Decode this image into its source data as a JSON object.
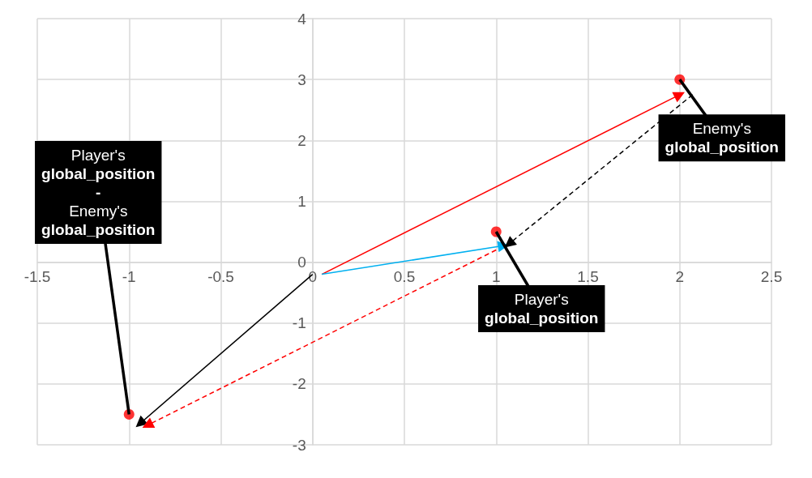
{
  "chart_data": {
    "type": "scatter",
    "xlim": [
      -1.5,
      2.5
    ],
    "xticks": [
      -1.5,
      -1,
      -0.5,
      0,
      0.5,
      1,
      1.5,
      2,
      2.5
    ],
    "ylim": [
      -3,
      4
    ],
    "yticks": [
      -3,
      -2,
      -1,
      0,
      1,
      2,
      3,
      4
    ],
    "grid": true,
    "series": [
      {
        "color": "#ff0000",
        "marker": "circle",
        "x": [
          2,
          1,
          -1
        ],
        "values": [
          3,
          0.5,
          -2.5
        ]
      },
      {
        "type": "line",
        "color": "#ff0000",
        "line_style": "solid",
        "marker": "triangle",
        "x": [
          0.05,
          2.0
        ],
        "values": [
          -0.2,
          2.75
        ]
      },
      {
        "type": "line",
        "color": "#00b0f0",
        "line_style": "solid",
        "marker": "triangle",
        "x": [
          0.05,
          1.04
        ],
        "values": [
          -0.2,
          0.27
        ]
      },
      {
        "type": "line",
        "color": "#000000",
        "line_style": "solid",
        "marker": "triangle",
        "x": [
          0.0,
          -0.94
        ],
        "values": [
          -0.2,
          -2.65
        ]
      },
      {
        "type": "line",
        "color": "#000000",
        "line_style": "dashed",
        "marker": "triangle",
        "x": [
          2.07,
          1.07
        ],
        "values": [
          2.75,
          0.3
        ]
      },
      {
        "type": "line",
        "color": "#ff0000",
        "line_style": "dashed",
        "marker": "triangle",
        "x": [
          1.0,
          -0.9
        ],
        "values": [
          0.2,
          -2.68
        ]
      }
    ],
    "annotations": [
      {
        "text": "Enemy's\nglobal_position",
        "x": 2,
        "y": 3
      },
      {
        "text": "Player's\nglobal_position",
        "x": 1,
        "y": 0.5
      },
      {
        "text": "Player's\nglobal_position\n-\nEnemy's\nglobal_position",
        "x": -1,
        "y": -2.5
      }
    ]
  }
}
